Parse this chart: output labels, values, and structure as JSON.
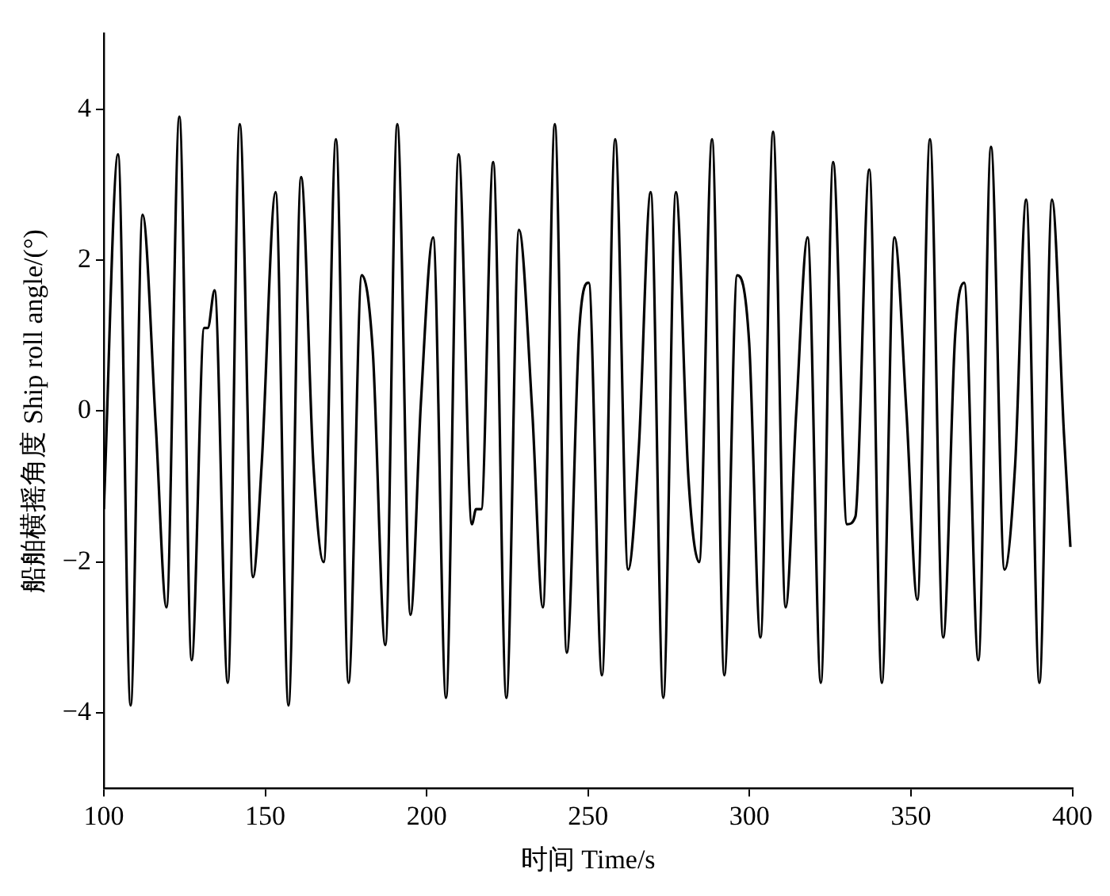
{
  "chart_data": {
    "type": "line",
    "xlabel": "时间 Time/s",
    "ylabel": "船舶横摇角度 Ship roll angle/(°)",
    "xlim": [
      100,
      400
    ],
    "xticks": [
      100,
      150,
      200,
      250,
      300,
      350,
      400
    ],
    "ylim": [
      -5,
      5
    ],
    "yticks": [
      -4,
      -2,
      0,
      2,
      4
    ],
    "marker": "none",
    "line_style": "solid",
    "series": [
      {
        "color": "#000000",
        "x": [
          100.0,
          104.4,
          108.3,
          112.0,
          116.1,
          119.4,
          123.4,
          127.2,
          131.1,
          132.2,
          134.3,
          138.4,
          142.1,
          146.2,
          148.9,
          153.2,
          157.2,
          161.1,
          164.9,
          168.1,
          171.9,
          175.8,
          179.9,
          183.3,
          187.2,
          190.9,
          195.0,
          198.2,
          202.0,
          206.0,
          209.9,
          214.0,
          215.3,
          216.9,
          220.6,
          224.7,
          228.6,
          232.7,
          236.0,
          239.7,
          243.4,
          247.3,
          250.2,
          254.3,
          258.4,
          262.4,
          265.7,
          269.4,
          273.3,
          277.2,
          281.1,
          284.4,
          288.4,
          292.2,
          296.2,
          299.9,
          303.4,
          307.3,
          311.2,
          314.5,
          318.0,
          322.1,
          325.9,
          330.2,
          332.8,
          337.1,
          341.0,
          344.9,
          348.6,
          352.0,
          355.9,
          360.0,
          363.7,
          366.5,
          370.9,
          374.8,
          379.0,
          382.3,
          385.7,
          389.8,
          393.7,
          397.4,
          399.4
        ],
        "values": [
          -1.3,
          3.4,
          -3.9,
          2.6,
          -0.2,
          -2.6,
          3.9,
          -3.3,
          1.1,
          1.1,
          1.6,
          -3.6,
          3.8,
          -2.2,
          -0.7,
          2.9,
          -3.9,
          3.1,
          -0.7,
          -2.0,
          3.6,
          -3.6,
          1.8,
          0.8,
          -3.1,
          3.8,
          -2.7,
          0.1,
          2.3,
          -3.8,
          3.4,
          -1.5,
          -1.3,
          -1.3,
          3.3,
          -3.8,
          2.4,
          0.0,
          -2.6,
          3.8,
          -3.2,
          1.1,
          1.7,
          -3.5,
          3.6,
          -2.1,
          -0.5,
          2.9,
          -3.8,
          2.9,
          -0.9,
          -2.0,
          3.6,
          -3.5,
          1.8,
          0.9,
          -3.0,
          3.7,
          -2.6,
          0.0,
          2.3,
          -3.6,
          3.3,
          -1.5,
          -1.4,
          3.2,
          -3.6,
          2.3,
          0.0,
          -2.5,
          3.6,
          -3.0,
          1.0,
          1.7,
          -3.3,
          3.5,
          -2.1,
          -0.7,
          2.8,
          -3.6,
          2.8,
          -0.3,
          -1.8
        ]
      }
    ]
  }
}
